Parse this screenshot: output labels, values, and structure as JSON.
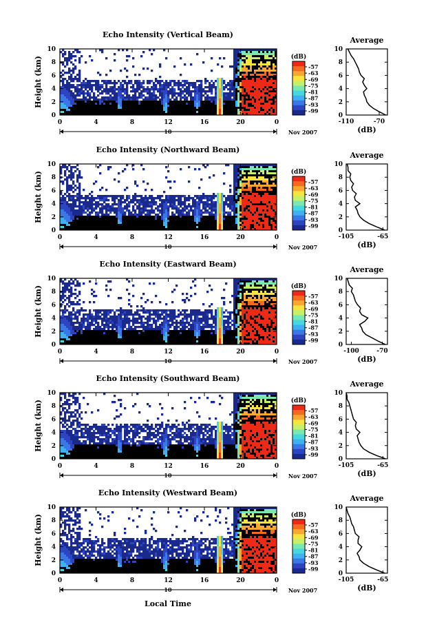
{
  "palette": [
    "#1a2a8c",
    "#2d45c0",
    "#3a78e8",
    "#3fb0f0",
    "#46d8e0",
    "#7be8b0",
    "#c6ef6a",
    "#f7e43c",
    "#f8a830",
    "#f56a20",
    "#ee2a16"
  ],
  "colorbar": {
    "unit": "(dB)",
    "ticks": [
      "-57",
      "-63",
      "-69",
      "-75",
      "-81",
      "-87",
      "-93",
      "-99"
    ]
  },
  "month_label": "Nov 2007",
  "xlabel_bottom": "Local Time",
  "day_marker": "10",
  "ylabel": "Height (km)",
  "average_title": "Average",
  "average_xlabel": "(dB)",
  "panels": [
    {
      "title": "Echo Intensity (Vertical Beam)",
      "avg_xticks": [
        "-110",
        "-70"
      ],
      "avg_range": [
        -110,
        -60
      ]
    },
    {
      "title": "Echo Intensity (Northward Beam)",
      "avg_xticks": [
        "-105",
        "-65"
      ],
      "avg_range": [
        -105,
        -60
      ]
    },
    {
      "title": "Echo Intensity (Eastward Beam)",
      "avg_xticks": [
        "-100",
        "-70"
      ],
      "avg_range": [
        -105,
        -65
      ]
    },
    {
      "title": "Echo Intensity (Southward Beam)",
      "avg_xticks": [
        "-105",
        "-65"
      ],
      "avg_range": [
        -105,
        -60
      ]
    },
    {
      "title": "Echo Intensity (Westward Beam)",
      "avg_xticks": [
        "-105",
        "-65"
      ],
      "avg_range": [
        -105,
        -60
      ]
    }
  ],
  "chart_data": {
    "type": "heatmap",
    "x_ticks": [
      "0",
      "4",
      "8",
      "12",
      "16",
      "20",
      "0"
    ],
    "x_range_hours": [
      0,
      24
    ],
    "y_ticks": [
      "0",
      "2",
      "4",
      "6",
      "8",
      "10"
    ],
    "y_range_km": [
      0,
      10
    ],
    "color_range_db": [
      -99,
      -57
    ],
    "average_profiles": {
      "heights_km": [
        0,
        0.5,
        1,
        1.5,
        2,
        2.5,
        3,
        3.5,
        4,
        4.5,
        5,
        5.5,
        6,
        6.5,
        7,
        7.5,
        8,
        8.5,
        9,
        9.5,
        10
      ],
      "vertical": [
        -62,
        -70,
        -77,
        -82,
        -85,
        -86,
        -88,
        -89,
        -85,
        -88,
        -90,
        -88,
        -92,
        -94,
        -95,
        -97,
        -99,
        -101,
        -104,
        -106,
        -108
      ],
      "northward": [
        -63,
        -72,
        -80,
        -86,
        -90,
        -92,
        -93,
        -95,
        -90,
        -95,
        -96,
        -94,
        -98,
        -99,
        -97,
        -100,
        -101,
        -100,
        -103,
        -103,
        -104
      ],
      "eastward": [
        -67,
        -74,
        -80,
        -86,
        -89,
        -90,
        -92,
        -87,
        -84,
        -90,
        -92,
        -91,
        -94,
        -96,
        -97,
        -98,
        -100,
        -99,
        -102,
        -103,
        -104
      ],
      "southward": [
        -62,
        -72,
        -80,
        -86,
        -89,
        -91,
        -92,
        -93,
        -90,
        -94,
        -95,
        -94,
        -97,
        -98,
        -99,
        -100,
        -101,
        -102,
        -104,
        -104,
        -105
      ],
      "westward": [
        -63,
        -72,
        -80,
        -86,
        -90,
        -91,
        -93,
        -90,
        -88,
        -92,
        -92,
        -91,
        -95,
        -96,
        -97,
        -99,
        -100,
        -101,
        -103,
        -104,
        -105
      ]
    }
  }
}
